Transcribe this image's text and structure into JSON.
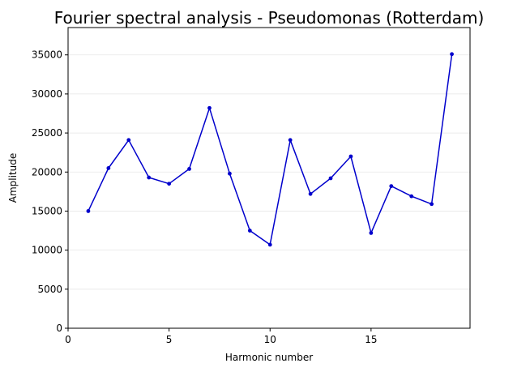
{
  "chart_data": {
    "type": "line",
    "title": "Fourier spectral analysis - Pseudomonas (Rotterdam)",
    "xlabel": "Harmonic number",
    "ylabel": "Amplitude",
    "xlim": [
      0,
      19.9
    ],
    "ylim": [
      0,
      38500
    ],
    "xticks": [
      0,
      5,
      10,
      15
    ],
    "yticks": [
      0,
      5000,
      10000,
      15000,
      20000,
      25000,
      30000,
      35000
    ],
    "grid": "horizontal",
    "line_color": "#0000cc",
    "x": [
      1,
      2,
      3,
      4,
      5,
      6,
      7,
      8,
      9,
      10,
      11,
      12,
      13,
      14,
      15,
      16,
      17,
      18,
      19
    ],
    "y": [
      15000,
      20500,
      24100,
      19300,
      18500,
      20400,
      28200,
      19800,
      12500,
      10700,
      24100,
      17200,
      19200,
      22000,
      12200,
      18200,
      16900,
      15900,
      35100
    ]
  }
}
